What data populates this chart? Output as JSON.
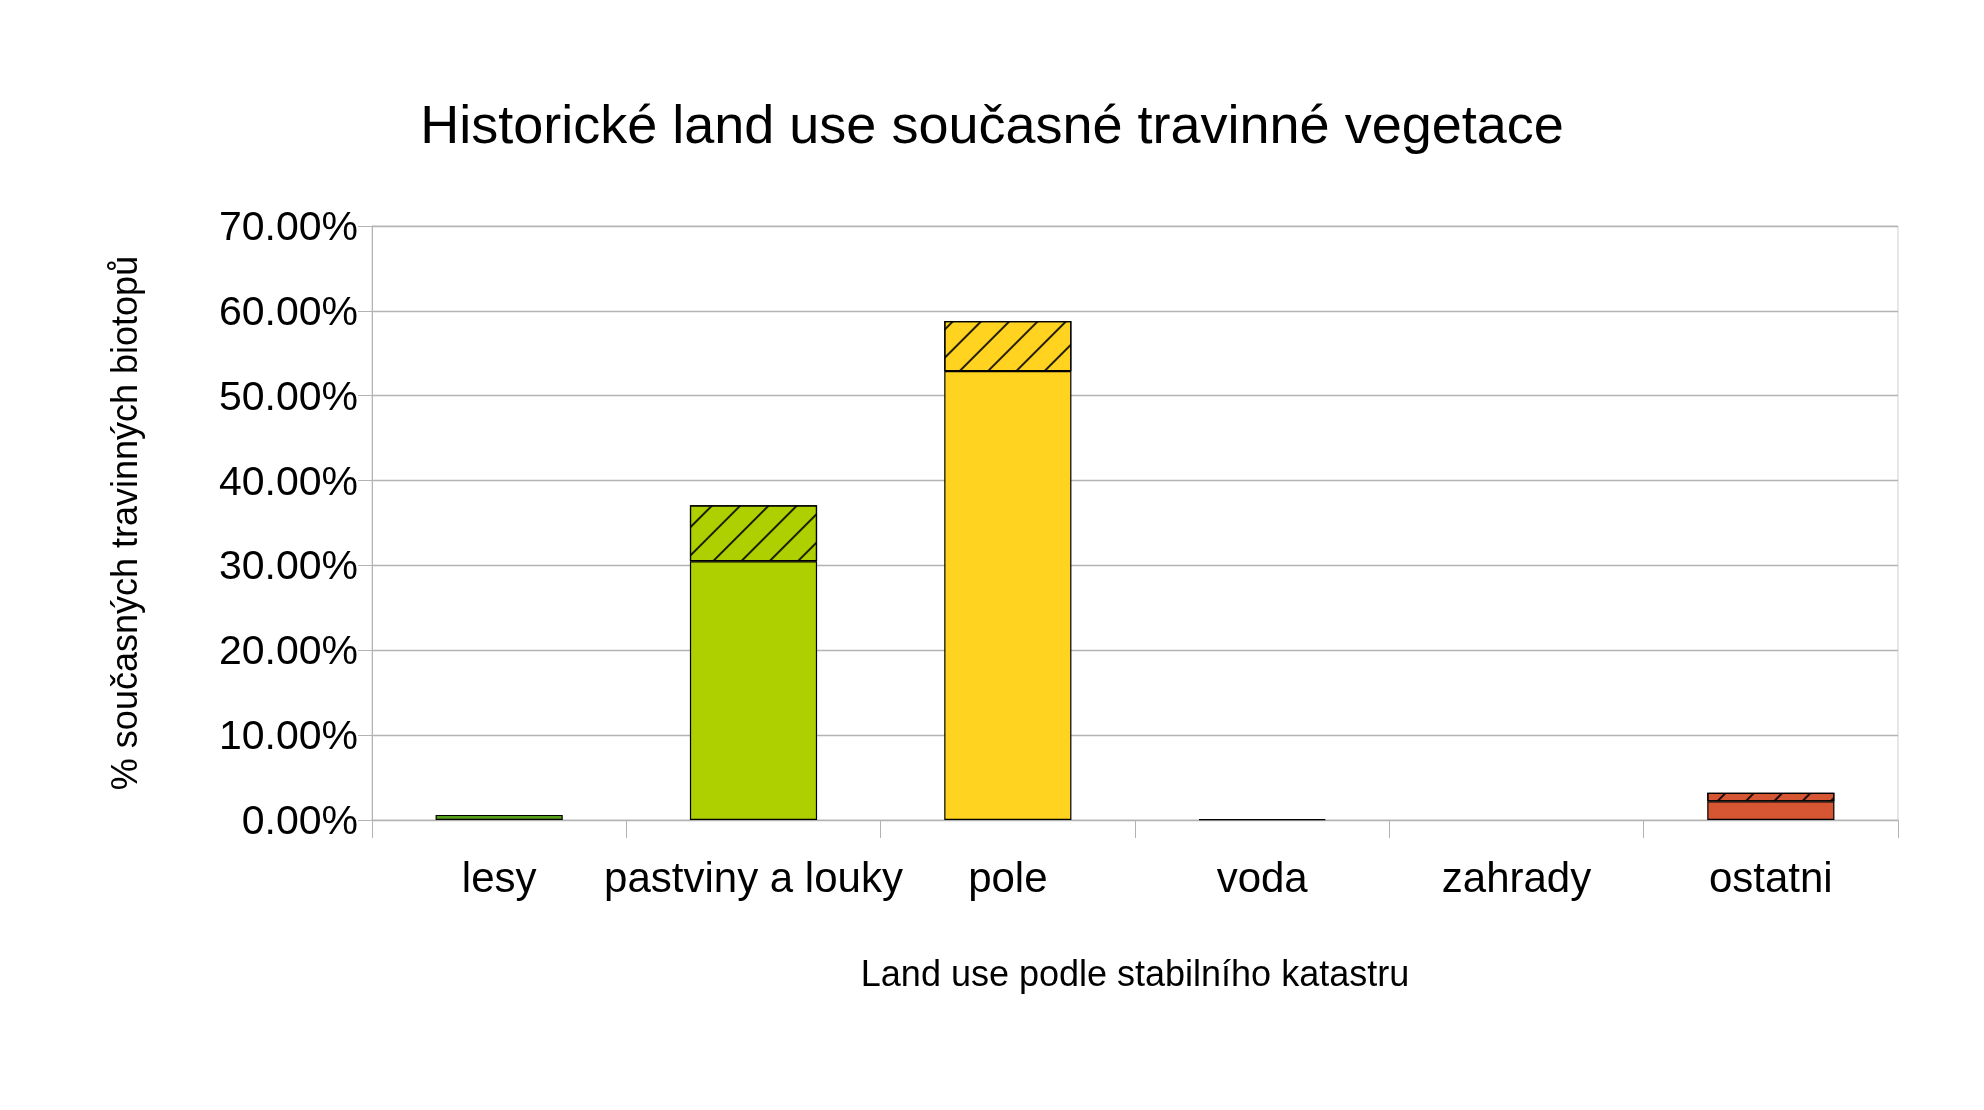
{
  "chart_data": {
    "type": "bar",
    "title": "Historické land use současné travinné vegetace",
    "xlabel": "Land use podle stabilního katastru",
    "ylabel": "% současných travinných biotopů",
    "categories": [
      "lesy",
      "pastviny a louky",
      "pole",
      "voda",
      "zahrady",
      "ostatni"
    ],
    "stacked": true,
    "series": [
      {
        "colors": [
          "#579d1c",
          "#aecf00",
          "#ffd320",
          "#000000",
          "#7e0021",
          "#d65532"
        ],
        "values": [
          0.6,
          30.5,
          52.9,
          0.1,
          null,
          2.2
        ]
      },
      {
        "colors": [
          "#579d1c",
          "#aecf00",
          "#ffd320",
          "#004586",
          "#7e0021",
          "#d65532"
        ],
        "values": [
          null,
          6.6,
          5.9,
          null,
          null,
          1.0
        ]
      }
    ],
    "ylim": [
      0,
      70
    ],
    "yticks": [
      {
        "value": 0,
        "label": "0.00%"
      },
      {
        "value": 10,
        "label": "10.00%"
      },
      {
        "value": 20,
        "label": "20.00%"
      },
      {
        "value": 30,
        "label": "30.00%"
      },
      {
        "value": 40,
        "label": "40.00%"
      },
      {
        "value": 50,
        "label": "50.00%"
      },
      {
        "value": 60,
        "label": "60.00%"
      },
      {
        "value": 70,
        "label": "70.00%"
      }
    ],
    "grid": "y"
  }
}
